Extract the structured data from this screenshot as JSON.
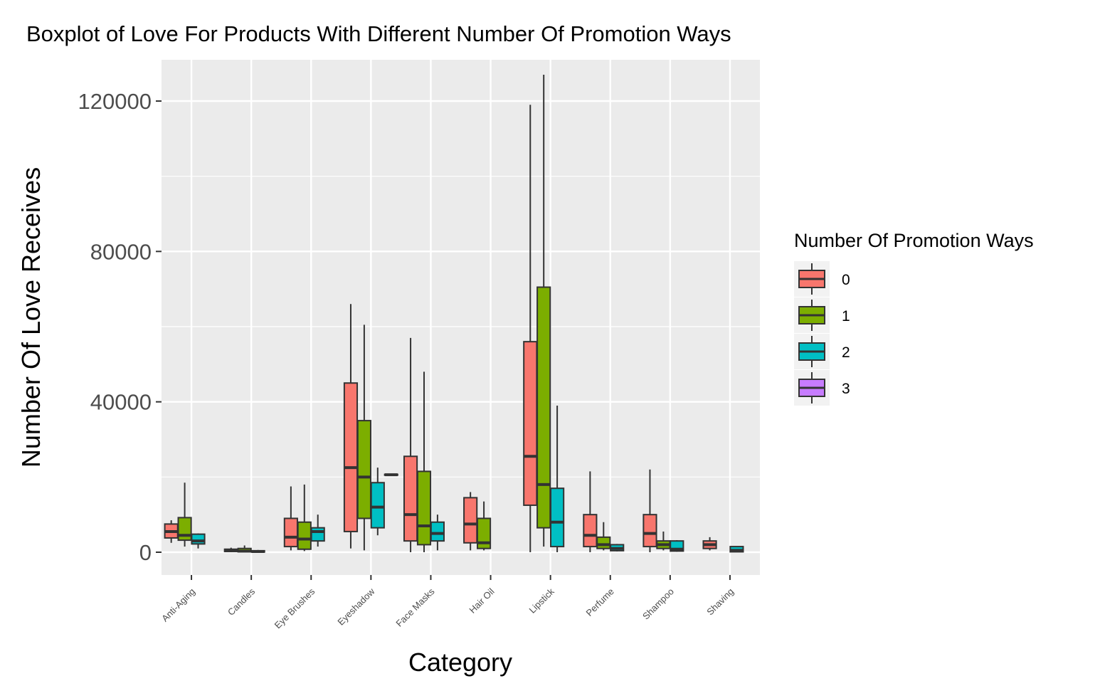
{
  "chart_data": {
    "type": "boxplot",
    "title": "Boxplot of Love For Products With Different Number Of Promotion Ways",
    "xlabel": "Category",
    "ylabel": "Number Of Love Receives",
    "ylim": [
      -6500,
      130000
    ],
    "yticks": [
      0,
      40000,
      80000,
      120000
    ],
    "categories": [
      "Anti-Aging",
      "Candles",
      "Eye Brushes",
      "Eyeshadow",
      "Face Masks",
      "Hair Oil",
      "Lipstick",
      "Perfume",
      "Shampoo",
      "Shaving"
    ],
    "legend": {
      "title": "Number Of Promotion Ways",
      "position": "right",
      "entries": [
        {
          "label": "0",
          "color": "#F8766D"
        },
        {
          "label": "1",
          "color": "#7CAE00"
        },
        {
          "label": "2",
          "color": "#00BFC4"
        },
        {
          "label": "3",
          "color": "#C77CFF"
        }
      ]
    },
    "boxes": [
      {
        "category": "Anti-Aging",
        "group": "0",
        "min": 2500,
        "q1": 3800,
        "median": 5500,
        "q3": 7500,
        "max": 8500
      },
      {
        "category": "Anti-Aging",
        "group": "1",
        "min": 1500,
        "q1": 3200,
        "median": 4500,
        "q3": 9200,
        "max": 18500
      },
      {
        "category": "Anti-Aging",
        "group": "2",
        "min": 1000,
        "q1": 2200,
        "median": 3000,
        "q3": 4800,
        "max": 5000
      },
      {
        "category": "Candles",
        "group": "0",
        "min": 0,
        "q1": 200,
        "median": 400,
        "q3": 800,
        "max": 1200
      },
      {
        "category": "Candles",
        "group": "1",
        "min": 0,
        "q1": 100,
        "median": 300,
        "q3": 1000,
        "max": 1800
      },
      {
        "category": "Candles",
        "group": "2",
        "min": 0,
        "q1": 50,
        "median": 200,
        "q3": 400,
        "max": 600
      },
      {
        "category": "Eye Brushes",
        "group": "0",
        "min": 500,
        "q1": 1500,
        "median": 4000,
        "q3": 9000,
        "max": 17500
      },
      {
        "category": "Eye Brushes",
        "group": "1",
        "min": 300,
        "q1": 800,
        "median": 3500,
        "q3": 8000,
        "max": 18000
      },
      {
        "category": "Eye Brushes",
        "group": "2",
        "min": 1500,
        "q1": 3000,
        "median": 5500,
        "q3": 6500,
        "max": 10000
      },
      {
        "category": "Eyeshadow",
        "group": "0",
        "min": 1000,
        "q1": 5500,
        "median": 22500,
        "q3": 45000,
        "max": 66000
      },
      {
        "category": "Eyeshadow",
        "group": "1",
        "min": 500,
        "q1": 9000,
        "median": 20000,
        "q3": 35000,
        "max": 60500
      },
      {
        "category": "Eyeshadow",
        "group": "2",
        "min": 4500,
        "q1": 6500,
        "median": 12000,
        "q3": 18500,
        "max": 22500
      },
      {
        "category": "Eyeshadow",
        "group": "3",
        "min": 20400,
        "q1": 20500,
        "median": 20600,
        "q3": 20700,
        "max": 20800
      },
      {
        "category": "Face Masks",
        "group": "0",
        "min": 0,
        "q1": 3000,
        "median": 10000,
        "q3": 25500,
        "max": 57000
      },
      {
        "category": "Face Masks",
        "group": "1",
        "min": 0,
        "q1": 2000,
        "median": 7000,
        "q3": 21500,
        "max": 48000
      },
      {
        "category": "Face Masks",
        "group": "2",
        "min": 500,
        "q1": 3000,
        "median": 5000,
        "q3": 8000,
        "max": 10000
      },
      {
        "category": "Hair Oil",
        "group": "0",
        "min": 500,
        "q1": 2500,
        "median": 7500,
        "q3": 14500,
        "max": 16000
      },
      {
        "category": "Hair Oil",
        "group": "1",
        "min": 500,
        "q1": 1000,
        "median": 2500,
        "q3": 9000,
        "max": 13500
      },
      {
        "category": "Lipstick",
        "group": "0",
        "min": 0,
        "q1": 12500,
        "median": 25500,
        "q3": 56000,
        "max": 119000
      },
      {
        "category": "Lipstick",
        "group": "1",
        "min": 1500,
        "q1": 6500,
        "median": 18000,
        "q3": 70500,
        "max": 127000
      },
      {
        "category": "Lipstick",
        "group": "2",
        "min": 0,
        "q1": 1500,
        "median": 8000,
        "q3": 17000,
        "max": 39000
      },
      {
        "category": "Perfume",
        "group": "0",
        "min": 0,
        "q1": 1500,
        "median": 4500,
        "q3": 10000,
        "max": 21500
      },
      {
        "category": "Perfume",
        "group": "1",
        "min": 500,
        "q1": 1000,
        "median": 2000,
        "q3": 4000,
        "max": 8000
      },
      {
        "category": "Perfume",
        "group": "2",
        "min": 200,
        "q1": 400,
        "median": 1000,
        "q3": 2000,
        "max": 2200
      },
      {
        "category": "Shampoo",
        "group": "0",
        "min": 0,
        "q1": 1500,
        "median": 5000,
        "q3": 10000,
        "max": 22000
      },
      {
        "category": "Shampoo",
        "group": "1",
        "min": 500,
        "q1": 1000,
        "median": 2000,
        "q3": 3000,
        "max": 5500
      },
      {
        "category": "Shampoo",
        "group": "2",
        "min": 100,
        "q1": 300,
        "median": 800,
        "q3": 3000,
        "max": 3200
      },
      {
        "category": "Shaving",
        "group": "0",
        "min": 500,
        "q1": 1000,
        "median": 2000,
        "q3": 3000,
        "max": 4000
      },
      {
        "category": "Shaving",
        "group": "2",
        "min": 0,
        "q1": 100,
        "median": 500,
        "q3": 1500,
        "max": 1600
      }
    ]
  }
}
